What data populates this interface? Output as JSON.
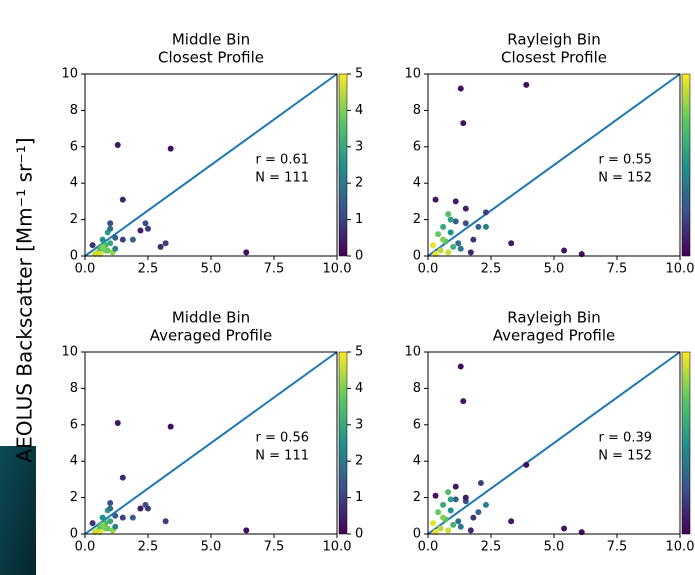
{
  "ylabel": "AEOLUS Backscatter [Mm⁻¹ sr⁻¹]",
  "chart_data": [
    {
      "type": "scatter",
      "title": "Middle Bin",
      "subtitle": "Closest Profile",
      "annotations": [
        "r = 0.61",
        "N = 111"
      ],
      "x": [
        0.3,
        0.5,
        0.6,
        0.7,
        0.8,
        0.9,
        1.0,
        1.1,
        0.6,
        0.8,
        1.2,
        0.4,
        1.0,
        1.5,
        0.9,
        1.3,
        3.4,
        6.4,
        1.5,
        2.4,
        3.2,
        3.0,
        2.2,
        1.0,
        2.5,
        1.9,
        0.7,
        1.2
      ],
      "y": [
        0.6,
        0.2,
        0.4,
        0.9,
        0.3,
        1.3,
        0.7,
        0.2,
        0.1,
        0.6,
        1.0,
        0.1,
        1.8,
        0.9,
        0.3,
        6.1,
        5.9,
        0.2,
        3.1,
        1.8,
        0.7,
        0.5,
        1.4,
        1.5,
        1.5,
        0.9,
        0.5,
        0.4
      ],
      "c": [
        0.8,
        4.5,
        3.5,
        2.5,
        4.0,
        2.8,
        3.0,
        4.2,
        4.8,
        3.2,
        1.5,
        4.6,
        1.2,
        1.0,
        3.8,
        0.3,
        0.2,
        0.2,
        0.6,
        1.2,
        0.9,
        0.6,
        0.4,
        1.8,
        0.9,
        1.5,
        4.0,
        2.2
      ],
      "xlim": [
        0,
        10
      ],
      "ylim": [
        0,
        10
      ],
      "xticks": [
        {
          "value": 0,
          "label": "0.0"
        },
        2.5,
        {
          "value": 5,
          "label": "5.0"
        },
        7.5,
        {
          "value": 10,
          "label": "10.0"
        }
      ],
      "yticks": [
        0,
        2,
        4,
        6,
        8,
        10
      ],
      "clim": [
        0,
        5
      ],
      "cticks": [
        0,
        1,
        2,
        3,
        4,
        5
      ],
      "line_color": "#1f77b4",
      "colormap": "viridis"
    },
    {
      "type": "scatter",
      "title": "Rayleigh Bin",
      "subtitle": "Closest Profile",
      "annotations": [
        "r = 0.55",
        "N = 152"
      ],
      "x": [
        0.2,
        0.4,
        0.5,
        0.6,
        0.7,
        0.8,
        0.9,
        1.0,
        0.3,
        0.6,
        1.1,
        1.2,
        0.8,
        1.3,
        1.5,
        1.3,
        3.9,
        1.4,
        5.4,
        6.1,
        0.3,
        1.1,
        1.5,
        2.3,
        3.3,
        2.0,
        2.3,
        1.7,
        0.9,
        1.8
      ],
      "y": [
        0.6,
        1.2,
        0.3,
        1.6,
        0.8,
        0.2,
        1.3,
        0.5,
        0.1,
        0.9,
        1.9,
        0.7,
        2.3,
        0.4,
        1.8,
        9.2,
        9.4,
        7.3,
        0.3,
        0.1,
        3.1,
        3.0,
        2.6,
        2.4,
        0.7,
        1.6,
        1.6,
        0.2,
        2.0,
        0.9
      ],
      "c": [
        4.8,
        3.8,
        4.5,
        3.0,
        3.5,
        4.6,
        2.5,
        3.2,
        4.9,
        4.0,
        1.5,
        1.8,
        3.5,
        2.0,
        1.2,
        0.2,
        0.2,
        0.3,
        0.3,
        0.2,
        0.3,
        0.4,
        0.5,
        1.0,
        0.4,
        1.6,
        2.2,
        0.6,
        2.8,
        0.8
      ],
      "xlim": [
        0,
        10
      ],
      "ylim": [
        0,
        10
      ],
      "xticks": [
        {
          "value": 0,
          "label": "0.0"
        },
        2.5,
        {
          "value": 5,
          "label": "5.0"
        },
        7.5,
        {
          "value": 10,
          "label": "10.0"
        }
      ],
      "yticks": [
        0,
        2,
        4,
        6,
        8,
        10
      ],
      "clim": [
        0,
        5
      ],
      "line_color": "#1f77b4",
      "colormap": "viridis"
    },
    {
      "type": "scatter",
      "title": "Middle Bin",
      "subtitle": "Averaged Profile",
      "annotations": [
        "r = 0.56",
        "N = 111"
      ],
      "x": [
        0.3,
        0.5,
        0.6,
        0.7,
        0.8,
        0.9,
        1.0,
        1.1,
        0.6,
        0.8,
        1.2,
        0.4,
        1.0,
        1.5,
        0.9,
        1.3,
        3.4,
        6.4,
        1.5,
        2.4,
        3.2,
        2.2,
        1.0,
        2.5,
        1.9,
        0.7,
        1.2
      ],
      "y": [
        0.6,
        0.2,
        0.4,
        0.9,
        0.3,
        1.3,
        0.7,
        0.2,
        0.1,
        0.6,
        1.0,
        0.1,
        1.7,
        0.9,
        0.3,
        6.1,
        5.9,
        0.2,
        3.1,
        1.6,
        0.7,
        1.4,
        1.4,
        1.4,
        0.9,
        0.5,
        0.4
      ],
      "c": [
        0.8,
        4.5,
        3.5,
        2.5,
        4.0,
        2.8,
        3.0,
        4.2,
        4.8,
        3.2,
        1.5,
        4.6,
        1.2,
        1.0,
        3.8,
        0.3,
        0.2,
        0.2,
        0.6,
        1.2,
        0.9,
        0.4,
        1.8,
        0.9,
        1.5,
        4.0,
        2.2
      ],
      "xlim": [
        0,
        10
      ],
      "ylim": [
        0,
        10
      ],
      "xticks": [
        {
          "value": 0,
          "label": "0.0"
        },
        2.5,
        {
          "value": 5,
          "label": "5.0"
        },
        7.5,
        {
          "value": 10,
          "label": "10.0"
        }
      ],
      "yticks": [
        0,
        2,
        4,
        6,
        8,
        10
      ],
      "clim": [
        0,
        5
      ],
      "cticks": [
        0,
        1,
        2,
        3,
        4,
        5
      ],
      "line_color": "#1f77b4",
      "colormap": "viridis"
    },
    {
      "type": "scatter",
      "title": "Rayleigh Bin",
      "subtitle": "Averaged Profile",
      "annotations": [
        "r = 0.39",
        "N = 152"
      ],
      "x": [
        0.2,
        0.4,
        0.5,
        0.6,
        0.7,
        0.8,
        0.9,
        1.0,
        0.3,
        0.6,
        1.1,
        1.2,
        0.8,
        1.3,
        1.5,
        1.3,
        3.9,
        1.4,
        5.4,
        6.1,
        0.3,
        1.1,
        1.5,
        2.1,
        3.3,
        2.0,
        2.3,
        1.7,
        0.9,
        1.8
      ],
      "y": [
        0.6,
        1.2,
        0.3,
        1.6,
        0.8,
        0.2,
        1.3,
        0.5,
        0.1,
        0.9,
        1.9,
        0.7,
        2.3,
        0.4,
        1.8,
        9.2,
        3.8,
        7.3,
        0.3,
        0.1,
        2.1,
        2.6,
        2.0,
        2.8,
        0.7,
        1.2,
        1.6,
        0.2,
        1.9,
        0.9
      ],
      "c": [
        4.8,
        3.8,
        4.5,
        3.0,
        3.5,
        4.6,
        2.5,
        3.2,
        4.9,
        4.0,
        1.5,
        1.8,
        3.5,
        2.0,
        1.2,
        0.2,
        0.2,
        0.3,
        0.3,
        0.2,
        0.3,
        0.4,
        0.5,
        1.0,
        0.4,
        1.6,
        2.2,
        0.6,
        2.8,
        0.8
      ],
      "xlim": [
        0,
        10
      ],
      "ylim": [
        0,
        10
      ],
      "xticks": [
        {
          "value": 0,
          "label": "0.0"
        },
        2.5,
        {
          "value": 5,
          "label": "5.0"
        },
        7.5,
        {
          "value": 10,
          "label": "10.0"
        }
      ],
      "yticks": [
        0,
        2,
        4,
        6,
        8,
        10
      ],
      "clim": [
        0,
        5
      ],
      "line_color": "#1f77b4",
      "colormap": "viridis"
    }
  ]
}
